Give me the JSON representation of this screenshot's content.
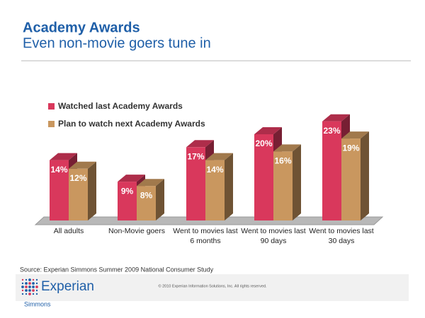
{
  "header": {
    "title": "Academy Awards",
    "subtitle": "Even non-movie goers tune in"
  },
  "chart_data": {
    "type": "bar3d",
    "categories": [
      "All adults",
      "Non-Movie goers",
      "Went to movies last 6 months",
      "Went to movies last 90 days",
      "Went to movies last 30 days"
    ],
    "series": [
      {
        "name": "Watched last Academy Awards",
        "color": "#d9385c",
        "values": [
          14,
          9,
          17,
          20,
          23
        ],
        "value_labels": [
          "14%",
          "9%",
          "17%",
          "20%",
          "23%"
        ]
      },
      {
        "name": "Plan to watch next Academy Awards",
        "color": "#c9975f",
        "values": [
          12,
          8,
          14,
          16,
          19
        ],
        "value_labels": [
          "12%",
          "8%",
          "14%",
          "16%",
          "19%"
        ]
      }
    ]
  },
  "source": "Source: Experian Simmons Summer 2009 National Consumer Study",
  "footer": {
    "brand": "Experian",
    "sub_brand": "Simmons",
    "copyright": "© 2010 Experian Information Solutions, Inc.  All rights reserved."
  }
}
